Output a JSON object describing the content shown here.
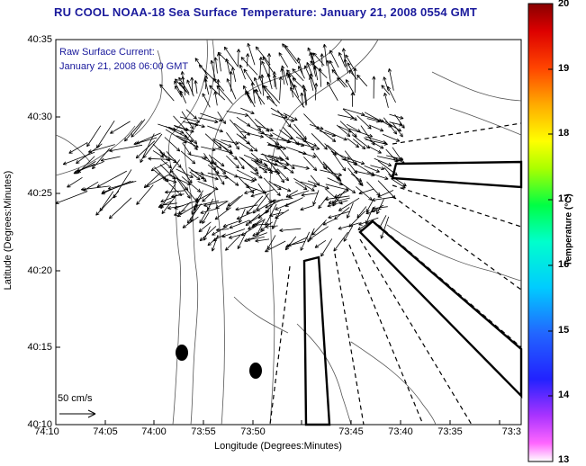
{
  "title": "RU COOL  NOAA-18  Sea Surface Temperature:  January 21, 2008 0554 GMT",
  "overlay": {
    "product": "Raw Surface Current:",
    "time": "January 21, 2008 06:00 GMT",
    "scale_label": "50 cm/s"
  },
  "axes": {
    "ylabel": "Latitude (Degrees:Minutes)",
    "xlabel": "Longitude (Degrees:Minutes)",
    "yticks": [
      "40:35",
      "40:30",
      "40:25",
      "40:20",
      "40:15",
      "40:10"
    ],
    "xticks": [
      "74:10",
      "74:05",
      "74:00",
      "73:55",
      "73:50",
      "73:45",
      "73:40",
      "73:35",
      "73:3"
    ]
  },
  "colorbar": {
    "title": "Temperature (°C)",
    "ticks": [
      "20",
      "19",
      "18",
      "17",
      "16",
      "15",
      "14",
      "13"
    ],
    "min": 13,
    "max": 20
  },
  "colors": {
    "title": "#1a1a9c",
    "frame": "#000000",
    "contour": "#666666"
  }
}
